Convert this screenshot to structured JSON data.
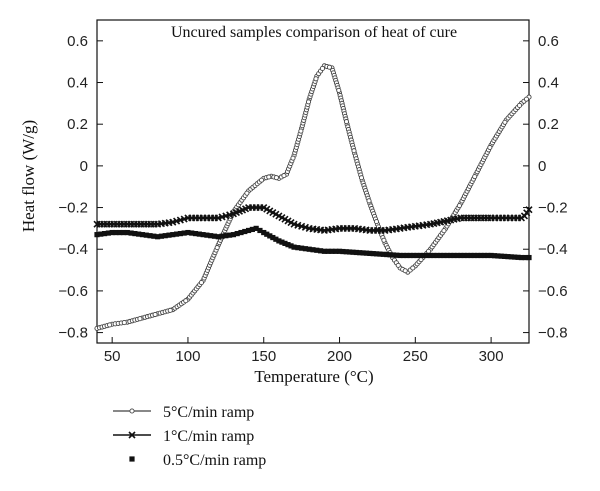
{
  "chart_data": {
    "type": "line",
    "title": "Uncured samples comparison of heat of cure",
    "xlabel": "Temperature (°C)",
    "ylabel": "Heat flow (W/g)",
    "xlim": [
      40,
      325
    ],
    "ylim": [
      -0.85,
      0.7
    ],
    "x_ticks": [
      50,
      100,
      150,
      200,
      250,
      300
    ],
    "x_tick_labels": [
      "50",
      "100",
      "150",
      "200",
      "250",
      "300"
    ],
    "y_ticks": [
      0.6,
      0.4,
      0.2,
      0,
      -0.2,
      -0.4,
      -0.6,
      -0.8
    ],
    "y_tick_labels": [
      "0.6",
      "0.4",
      "0.2",
      "0",
      "−0.2",
      "−0.4",
      "−0.6",
      "−0.8"
    ],
    "right_axis_mirrored": true,
    "grid": false,
    "legend_position": "below-left",
    "series": [
      {
        "name": "5°C/min ramp",
        "marker": "open-circle",
        "x": [
          40,
          50,
          60,
          70,
          80,
          90,
          100,
          110,
          120,
          130,
          140,
          150,
          155,
          160,
          165,
          170,
          175,
          180,
          185,
          190,
          195,
          200,
          205,
          210,
          215,
          220,
          225,
          230,
          235,
          240,
          245,
          250,
          255,
          260,
          270,
          280,
          290,
          300,
          310,
          320,
          325
        ],
        "y": [
          -0.78,
          -0.76,
          -0.75,
          -0.73,
          -0.71,
          -0.69,
          -0.64,
          -0.55,
          -0.38,
          -0.22,
          -0.12,
          -0.06,
          -0.05,
          -0.06,
          -0.04,
          0.05,
          0.18,
          0.32,
          0.43,
          0.48,
          0.47,
          0.35,
          0.2,
          0.06,
          -0.07,
          -0.18,
          -0.28,
          -0.37,
          -0.44,
          -0.49,
          -0.51,
          -0.48,
          -0.44,
          -0.4,
          -0.3,
          -0.18,
          -0.04,
          0.1,
          0.22,
          0.3,
          0.33
        ]
      },
      {
        "name": "1°C/min ramp",
        "marker": "x",
        "x": [
          40,
          60,
          80,
          90,
          100,
          110,
          120,
          130,
          140,
          150,
          160,
          170,
          180,
          190,
          200,
          210,
          220,
          230,
          240,
          250,
          260,
          280,
          300,
          310,
          320,
          322,
          325
        ],
        "y": [
          -0.28,
          -0.28,
          -0.28,
          -0.27,
          -0.25,
          -0.25,
          -0.25,
          -0.23,
          -0.2,
          -0.2,
          -0.24,
          -0.28,
          -0.3,
          -0.31,
          -0.3,
          -0.3,
          -0.31,
          -0.31,
          -0.3,
          -0.29,
          -0.28,
          -0.25,
          -0.25,
          -0.25,
          -0.25,
          -0.24,
          -0.21
        ]
      },
      {
        "name": "0.5°C/min ramp",
        "marker": "filled-square",
        "x": [
          40,
          50,
          60,
          70,
          80,
          90,
          100,
          110,
          120,
          130,
          140,
          145,
          150,
          160,
          170,
          180,
          190,
          200,
          220,
          240,
          260,
          280,
          300,
          320,
          325
        ],
        "y": [
          -0.33,
          -0.32,
          -0.32,
          -0.33,
          -0.34,
          -0.33,
          -0.32,
          -0.33,
          -0.34,
          -0.33,
          -0.31,
          -0.3,
          -0.32,
          -0.36,
          -0.39,
          -0.4,
          -0.41,
          -0.41,
          -0.42,
          -0.43,
          -0.43,
          -0.43,
          -0.43,
          -0.44,
          -0.44
        ]
      }
    ]
  }
}
